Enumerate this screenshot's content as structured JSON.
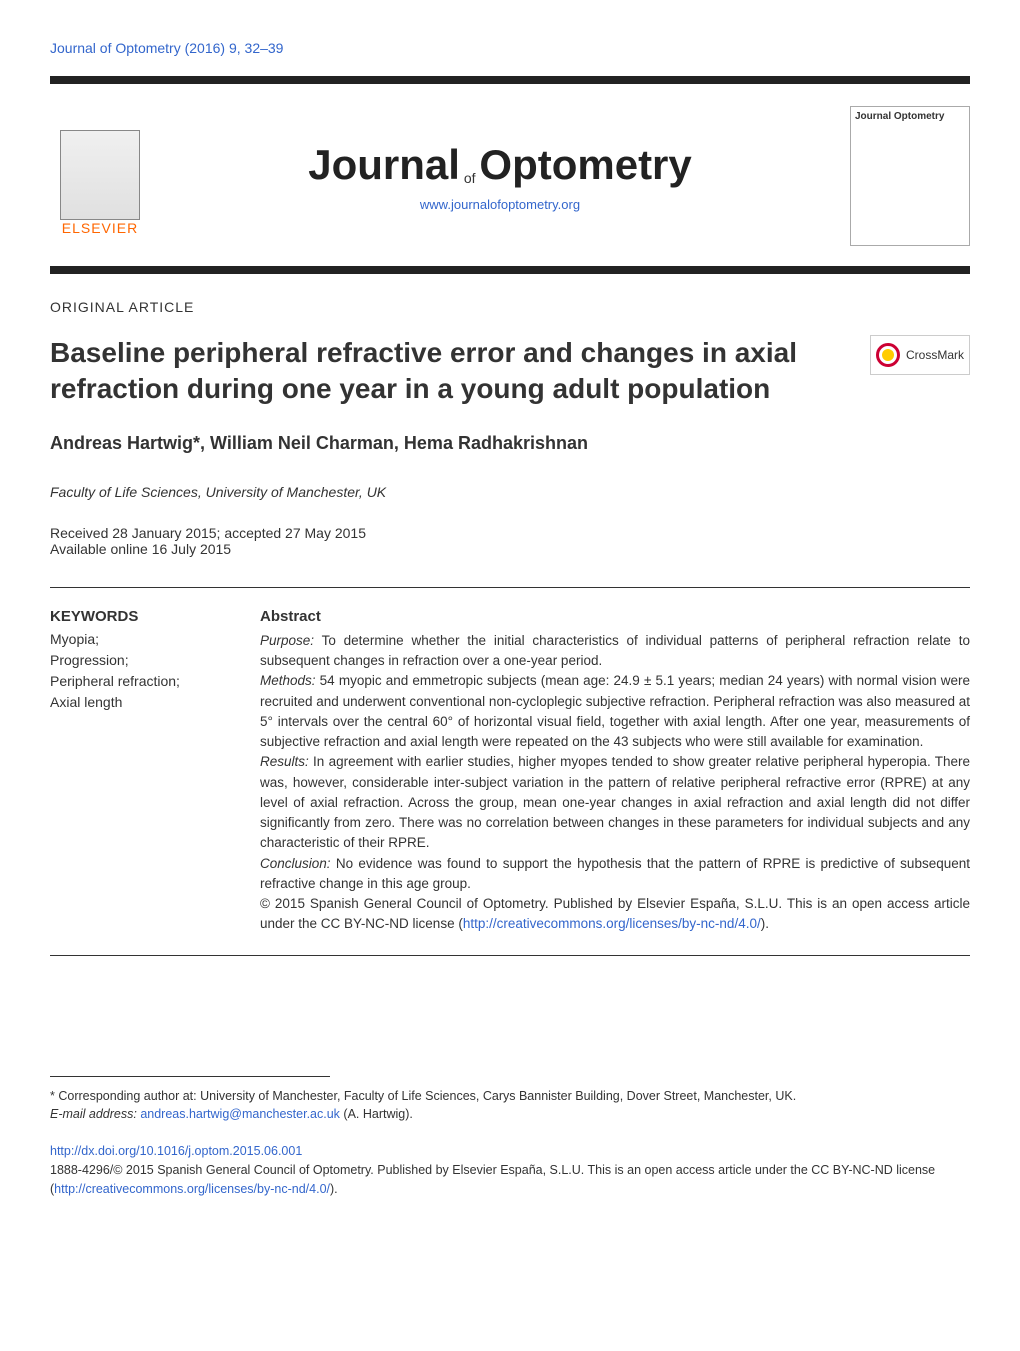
{
  "journal_ref": "Journal of Optometry (2016) 9, 32–39",
  "header": {
    "elsevier": "ELSEVIER",
    "journal_prefix": "Journal",
    "journal_of": "of",
    "journal_name": "Optometry",
    "url": "www.journalofoptometry.org",
    "cover_title": "Journal Optometry"
  },
  "article_type": "ORIGINAL ARTICLE",
  "title": "Baseline peripheral refractive error and changes in axial refraction during one year in a young adult population",
  "crossmark": "CrossMark",
  "authors": "Andreas Hartwig*, William Neil Charman, Hema Radhakrishnan",
  "affiliation": "Faculty of Life Sciences, University of Manchester, UK",
  "dates": {
    "received": "Received 28 January 2015; accepted 27 May 2015",
    "available": "Available online 16 July 2015"
  },
  "keywords": {
    "title": "KEYWORDS",
    "items": "Myopia;\nProgression;\nPeripheral refraction;\nAxial length"
  },
  "abstract": {
    "title": "Abstract",
    "purpose_label": "Purpose:",
    "purpose": " To determine whether the initial characteristics of individual patterns of peripheral refraction relate to subsequent changes in refraction over a one-year period.",
    "methods_label": "Methods:",
    "methods": " 54 myopic and emmetropic subjects (mean age: 24.9 ± 5.1 years; median 24 years) with normal vision were recruited and underwent conventional non-cycloplegic subjective refraction. Peripheral refraction was also measured at 5° intervals over the central 60° of horizontal visual field, together with axial length. After one year, measurements of subjective refraction and axial length were repeated on the 43 subjects who were still available for examination.",
    "results_label": "Results:",
    "results": " In agreement with earlier studies, higher myopes tended to show greater relative peripheral hyperopia. There was, however, considerable inter-subject variation in the pattern of relative peripheral refractive error (RPRE) at any level of axial refraction. Across the group, mean one-year changes in axial refraction and axial length did not differ significantly from zero. There was no correlation between changes in these parameters for individual subjects and any characteristic of their RPRE.",
    "conclusion_label": "Conclusion:",
    "conclusion": " No evidence was found to support the hypothesis that the pattern of RPRE is predictive of subsequent refractive change in this age group.",
    "copyright": "© 2015 Spanish General Council of Optometry. Published by Elsevier España, S.L.U. This is an open access article under the CC BY-NC-ND license (",
    "license_url": "http://creativecommons.org/licenses/by-nc-nd/4.0/",
    "copyright_close": ")."
  },
  "footer": {
    "corresponding": "* Corresponding author at: University of Manchester, Faculty of Life Sciences, Carys Bannister Building, Dover Street, Manchester, UK.",
    "email_label": "E-mail address:",
    "email": "andreas.hartwig@manchester.ac.uk",
    "email_suffix": " (A. Hartwig).",
    "doi": "http://dx.doi.org/10.1016/j.optom.2015.06.001",
    "issn": "1888-4296/© 2015 Spanish General Council of Optometry. Published by Elsevier España, S.L.U. This is an open access article under the CC BY-NC-ND license (",
    "license_url": "http://creativecommons.org/licenses/by-nc-nd/4.0/",
    "issn_close": ")."
  },
  "colors": {
    "link": "#3366cc",
    "elsevier_orange": "#ff6600",
    "dark": "#222222",
    "text": "#333333"
  }
}
